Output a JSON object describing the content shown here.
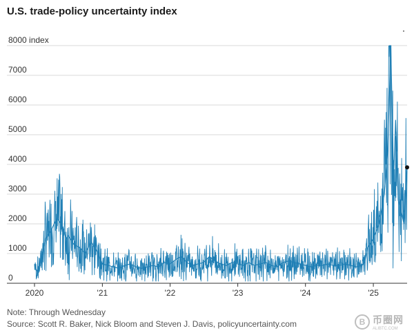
{
  "chart_data": {
    "type": "line",
    "title": "U.S. trade-policy uncertainty index",
    "ylabel_unit": "index",
    "ylim": [
      0,
      8000
    ],
    "yticks": [
      0,
      1000,
      2000,
      3000,
      4000,
      5000,
      6000,
      7000,
      8000
    ],
    "ytick_labels": [
      "0",
      "1000",
      "2000",
      "3000",
      "4000",
      "5000",
      "6000",
      "7000",
      "8000"
    ],
    "xlim": [
      "2020-01-01",
      "2025-07-02"
    ],
    "xtick_labels": [
      "2020",
      "'21",
      "'22",
      "'23",
      "'24",
      "'25"
    ],
    "xtick_dates": [
      "2020-01-01",
      "2021-01-01",
      "2022-01-01",
      "2023-01-01",
      "2024-01-01",
      "2025-01-01"
    ],
    "grid": true,
    "line_color": "#1f7fb5",
    "series": [
      {
        "x": [
          "2020-01-01",
          "2020-01-15",
          "2020-02-01",
          "2020-03-01",
          "2020-04-01",
          "2020-05-01",
          "2020-06-01",
          "2020-06-20",
          "2020-07-01",
          "2020-08-01",
          "2020-09-01",
          "2020-10-01",
          "2020-11-01",
          "2020-12-01",
          "2020-12-20",
          "2021-01-01",
          "2021-02-01",
          "2021-03-01",
          "2021-04-01",
          "2021-05-01",
          "2021-06-01",
          "2021-07-01",
          "2021-08-01",
          "2021-09-01",
          "2021-10-01",
          "2021-11-01",
          "2021-12-01",
          "2022-01-01",
          "2022-02-01",
          "2022-03-01",
          "2022-04-01",
          "2022-05-01",
          "2022-06-01",
          "2022-07-01",
          "2022-08-01",
          "2022-09-01",
          "2022-10-01",
          "2022-11-01",
          "2022-12-01",
          "2023-01-01",
          "2023-02-01",
          "2023-03-01",
          "2023-04-01",
          "2023-05-01",
          "2023-06-01",
          "2023-07-01",
          "2023-08-01",
          "2023-09-01",
          "2023-10-01",
          "2023-11-01",
          "2023-12-01",
          "2024-01-01",
          "2024-02-01",
          "2024-03-01",
          "2024-04-01",
          "2024-05-01",
          "2024-06-01",
          "2024-07-01",
          "2024-08-01",
          "2024-09-01",
          "2024-10-01",
          "2024-11-01",
          "2024-11-15",
          "2024-12-01",
          "2025-01-01",
          "2025-02-01",
          "2025-03-01",
          "2025-03-20",
          "2025-04-05",
          "2025-04-20",
          "2025-05-01",
          "2025-05-15",
          "2025-06-01",
          "2025-06-15",
          "2025-07-02"
        ],
        "y": [
          600,
          400,
          700,
          1500,
          1800,
          2200,
          1900,
          1500,
          1600,
          1300,
          1200,
          1000,
          1400,
          1100,
          800,
          650,
          600,
          550,
          500,
          600,
          650,
          550,
          500,
          550,
          600,
          550,
          700,
          650,
          800,
          900,
          700,
          600,
          650,
          700,
          900,
          750,
          650,
          600,
          700,
          650,
          600,
          700,
          600,
          650,
          700,
          600,
          550,
          700,
          750,
          700,
          650,
          600,
          550,
          600,
          600,
          650,
          600,
          600,
          650,
          600,
          550,
          600,
          700,
          1200,
          1500,
          2000,
          3000,
          4500,
          8000,
          3500,
          5500,
          2800,
          2400,
          2000,
          3900
        ],
        "name": ""
      }
    ],
    "last_point": {
      "x": "2025-07-02",
      "y": 3900
    }
  },
  "notes": {
    "note": "Note: Through Wednesday",
    "source": "Source: Scott R. Baker, Nick Bloom and Steven J. Davis, policyuncertainty.com"
  },
  "watermark": {
    "logo_glyph": "B",
    "main": "币圈网",
    "sub": "ALIBTC.COM"
  }
}
